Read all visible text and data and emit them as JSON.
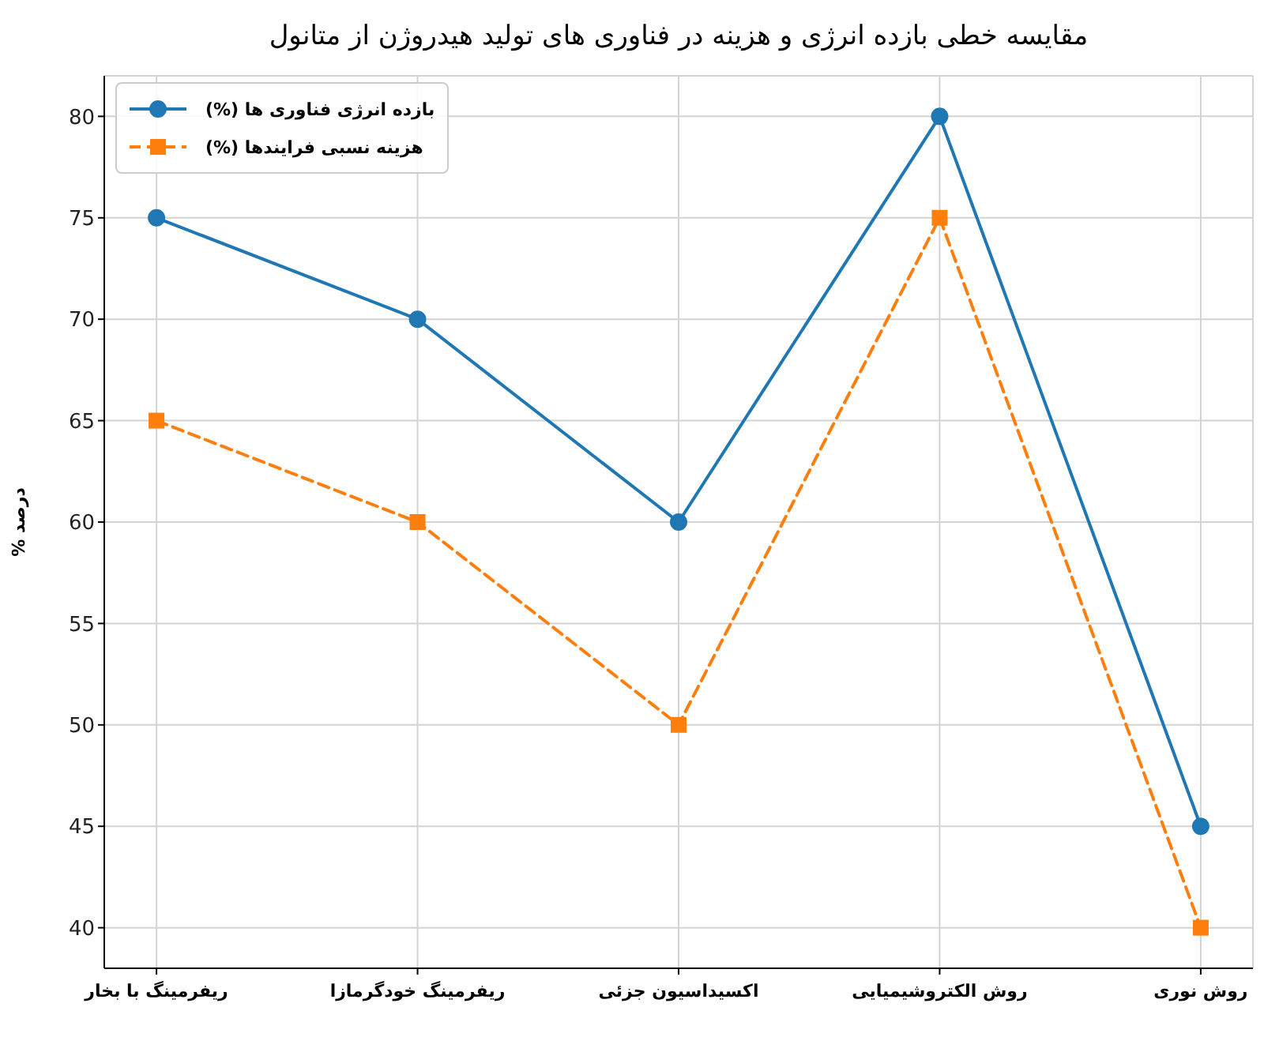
{
  "chart_data": {
    "type": "line",
    "title": "مقایسه خطی بازده انرژی و هزینه در فناوری های تولید هیدروژن از متانول",
    "ylabel": "درصد %",
    "categories": [
      "ریفرمینگ با بخار",
      "ریفرمینگ خودگرمازا",
      "اکسیداسیون جزئی",
      "روش الکتروشیمیایی",
      "روش نوری"
    ],
    "series": [
      {
        "name": "بازده انرژی فناوری ها (%)",
        "color": "#1f77b4",
        "values": [
          75,
          70,
          60,
          80,
          45
        ],
        "marker": "circle",
        "line_style": "solid"
      },
      {
        "name": "هزینه نسبی فرایندها (%)",
        "color": "#ff7f0e",
        "values": [
          65,
          60,
          50,
          75,
          40
        ],
        "marker": "square",
        "line_style": "dashed"
      }
    ],
    "ylim": [
      38,
      82
    ],
    "yticks": [
      40,
      45,
      50,
      55,
      60,
      65,
      70,
      75,
      80
    ],
    "grid": true,
    "legend": "top left"
  }
}
